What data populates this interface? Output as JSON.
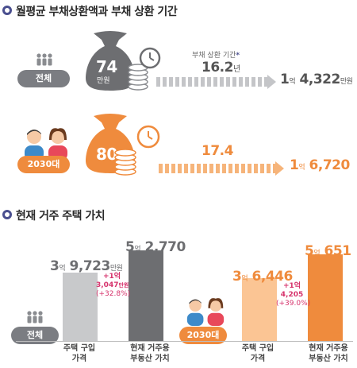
{
  "section1": {
    "title": "월평균 부채상환액과 부채 상환 기간",
    "repay_period_label": "부채 상환 기간",
    "asterisk": "*",
    "all": {
      "badge": "전체",
      "monthly_value": "74",
      "monthly_unit": "만원",
      "years": "16.2",
      "years_unit": "년",
      "debt_eok": "1",
      "eok_unit": "억",
      "debt_rest": "4,322",
      "man_unit": "만원"
    },
    "gen2030": {
      "badge": "2030대",
      "monthly_value": "80",
      "years": "17.4",
      "debt_eok": "1",
      "eok_unit": "억",
      "debt_rest": "6,720"
    }
  },
  "section2": {
    "title": "현재 거주 주택 가치",
    "all": {
      "badge": "전체",
      "purchase_eok": "3",
      "eok_unit": "억",
      "purchase_rest": "9,723",
      "man_unit": "만원",
      "current_eok": "5",
      "current_rest": "2,770",
      "diff_line1": "+1억",
      "diff_line2": "3,047",
      "diff_unit": "만원",
      "diff_pct": "(+32.8%)",
      "purchase_label_1": "주택 구입",
      "purchase_label_2": "가격",
      "current_label_1": "현재 거주용",
      "current_label_2": "부동산 가치"
    },
    "gen2030": {
      "badge": "2030대",
      "purchase_eok": "3",
      "eok_unit": "억",
      "purchase_rest": "6,446",
      "current_eok": "5",
      "current_rest": "651",
      "diff_line1": "+1억",
      "diff_line2": "4,205",
      "diff_pct": "(+39.0%)",
      "purchase_label_1": "주택 구입",
      "purchase_label_2": "가격",
      "current_label_1": "현재 거주용",
      "current_label_2": "부동산 가치"
    }
  },
  "chart_data": [
    {
      "type": "bar",
      "categories": [
        "주택 구입 가격",
        "현재 거주용 부동산 가치"
      ],
      "series": [
        {
          "name": "전체",
          "values": [
            39723,
            52770
          ]
        }
      ]
    },
    {
      "type": "bar",
      "categories": [
        "주택 구입 가격",
        "현재 거주용 부동산 가치"
      ],
      "series": [
        {
          "name": "2030대",
          "values": [
            36446,
            50651
          ]
        }
      ]
    }
  ],
  "colors": {
    "gray_dark": "#6d6e71",
    "gray_light": "#c8c9cb",
    "orange": "#ef8b3d",
    "orange_light": "#fbc594",
    "pink_accent": "#d6336c",
    "bullet": "#4a4f8f"
  },
  "icons": [
    "money-bag-icon",
    "coin-stack-icon",
    "clock-icon",
    "people-icon",
    "person-icon"
  ]
}
